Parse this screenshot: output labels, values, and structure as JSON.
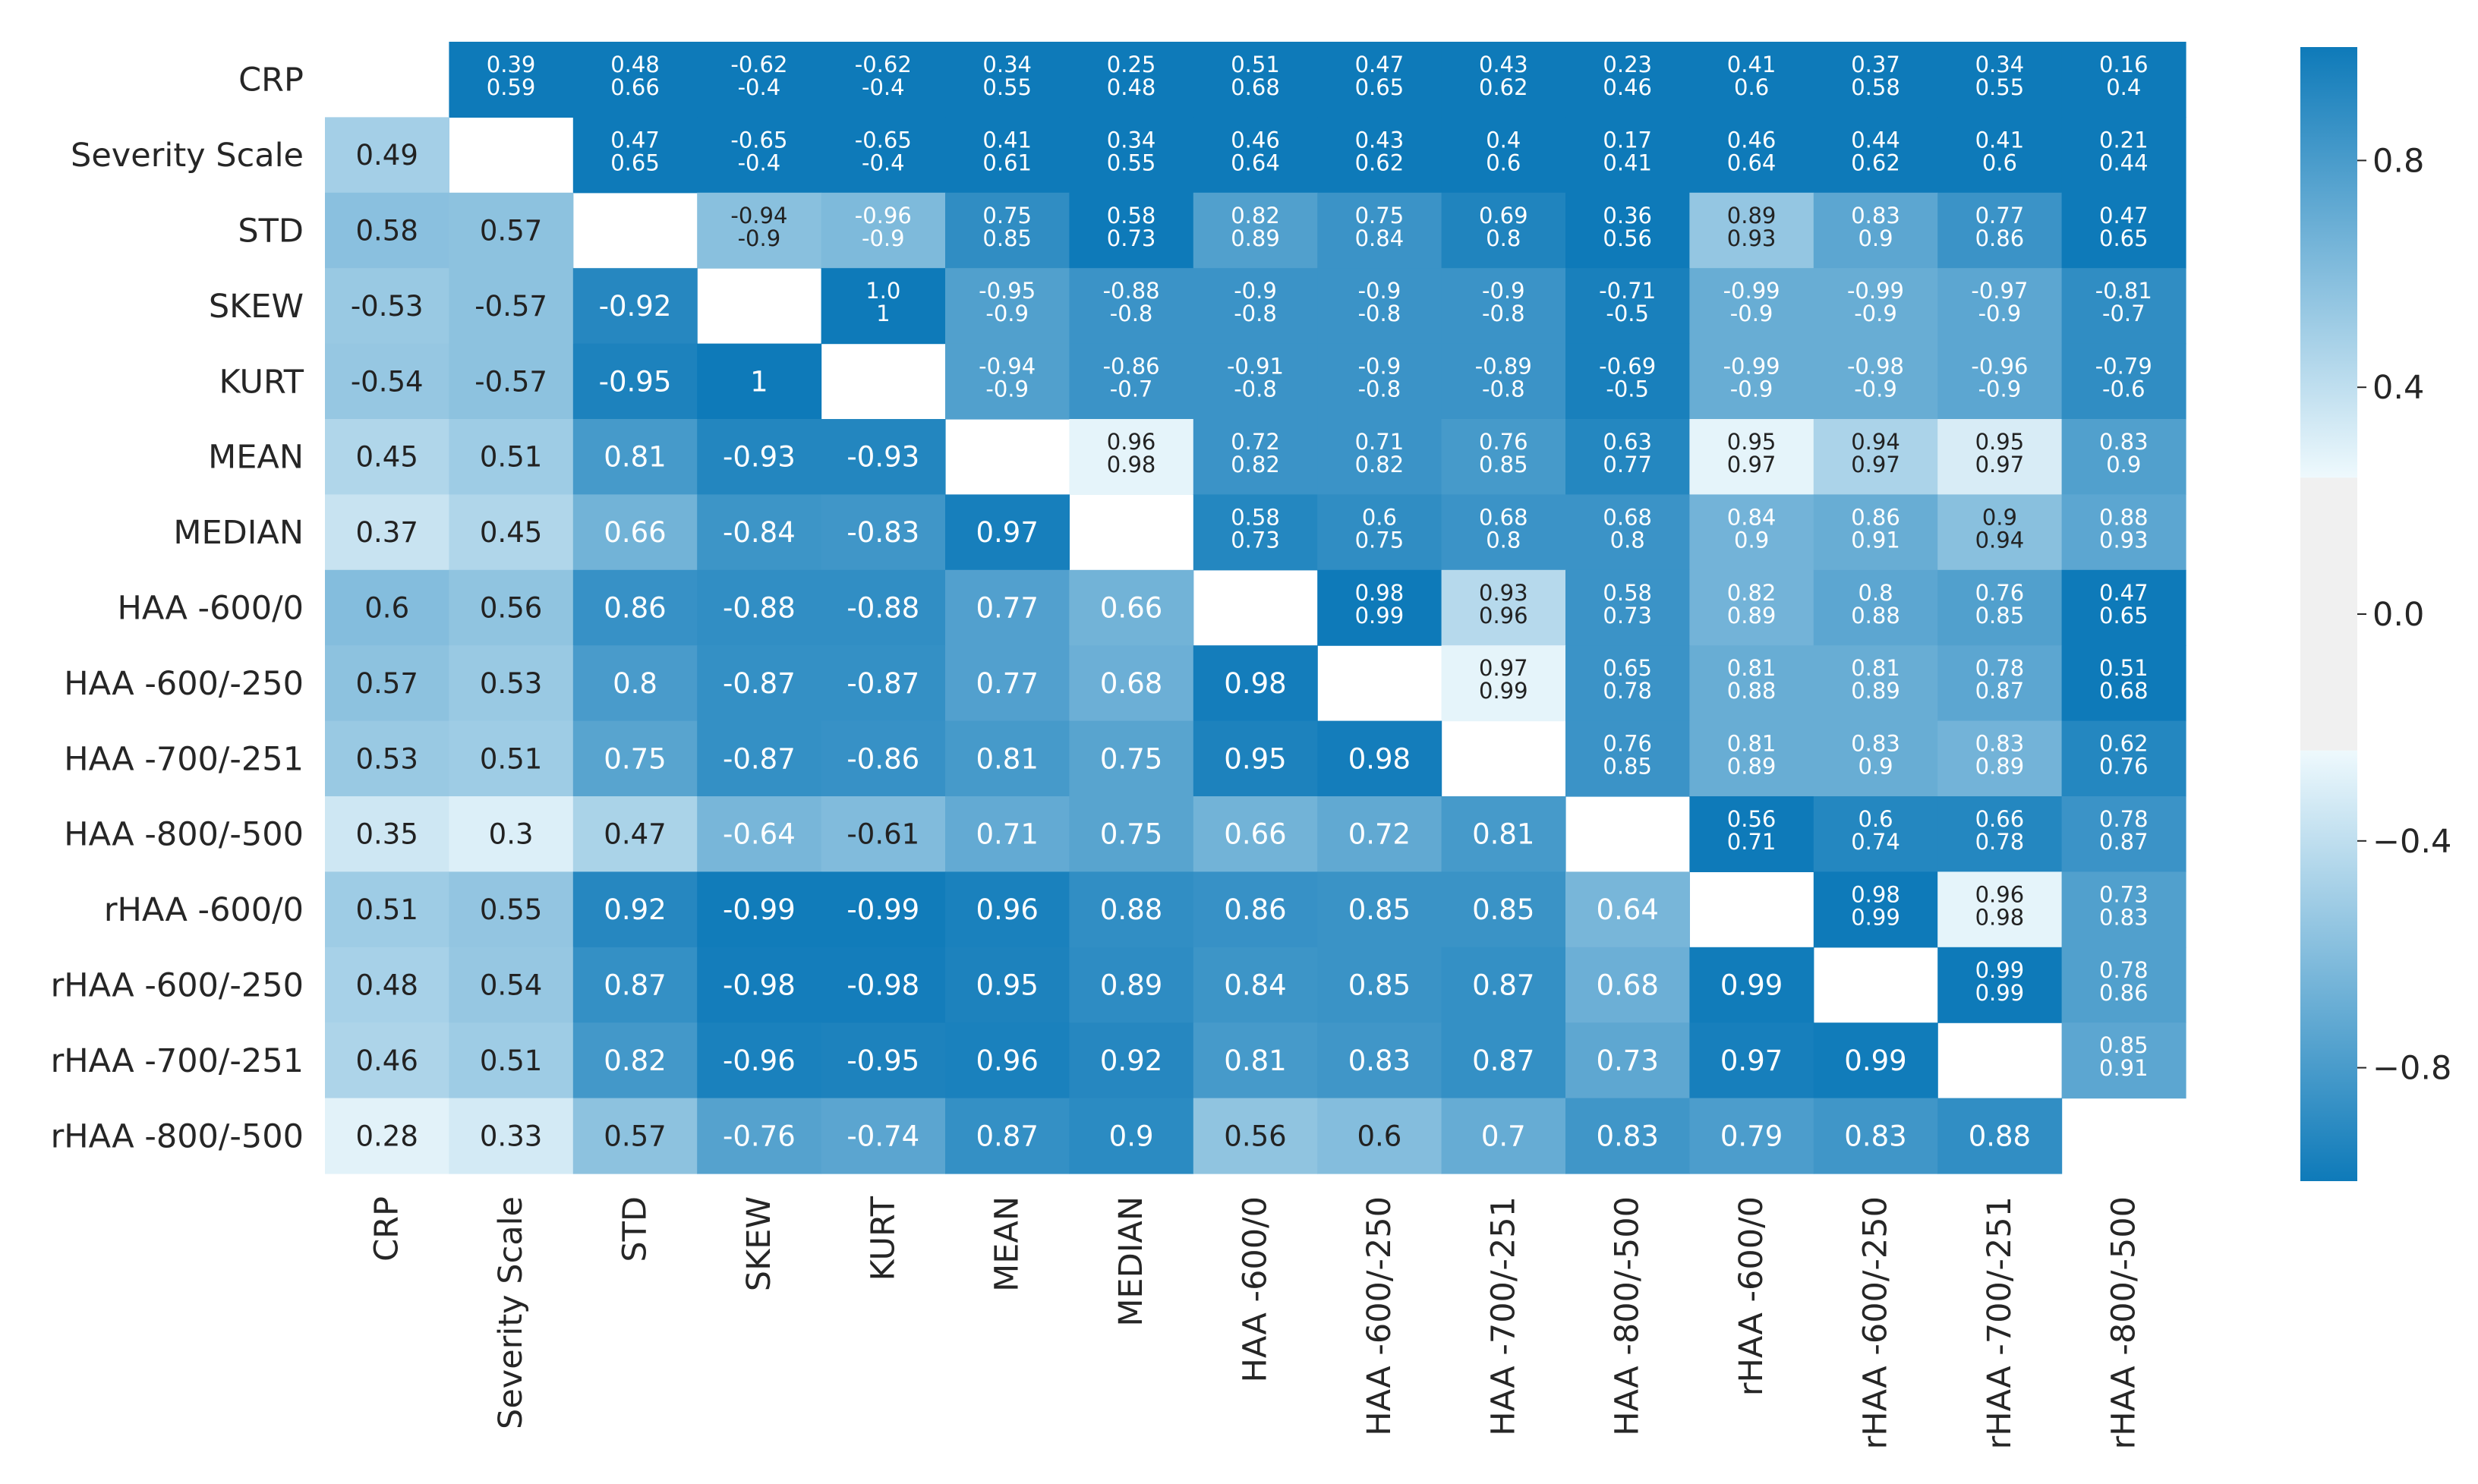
{
  "colors": {
    "dark": "#0e7ab9",
    "light": "#eef9fd",
    "center": "#f0f0f0",
    "text_dark": "#222222",
    "text_light": "#ffffff"
  },
  "chart_data": {
    "type": "heatmap",
    "title": "",
    "labels": [
      "CRP",
      "Severity Scale",
      "STD",
      "SKEW",
      "KURT",
      "MEAN",
      "MEDIAN",
      "HAA -600/0",
      "HAA -600/-250",
      "HAA -700/-251",
      "HAA -800/-500",
      "rHAA -600/0",
      "rHAA -600/-250",
      "rHAA -700/-251",
      "rHAA -800/-500"
    ],
    "lower_triangle": [
      [],
      [
        "0.49"
      ],
      [
        "0.58",
        "0.57"
      ],
      [
        "-0.53",
        "-0.57",
        "-0.92"
      ],
      [
        "-0.54",
        "-0.57",
        "-0.95",
        "1"
      ],
      [
        "0.45",
        "0.51",
        "0.81",
        "-0.93",
        "-0.93"
      ],
      [
        "0.37",
        "0.45",
        "0.66",
        "-0.84",
        "-0.83",
        "0.97"
      ],
      [
        "0.6",
        "0.56",
        "0.86",
        "-0.88",
        "-0.88",
        "0.77",
        "0.66"
      ],
      [
        "0.57",
        "0.53",
        "0.8",
        "-0.87",
        "-0.87",
        "0.77",
        "0.68",
        "0.98"
      ],
      [
        "0.53",
        "0.51",
        "0.75",
        "-0.87",
        "-0.86",
        "0.81",
        "0.75",
        "0.95",
        "0.98"
      ],
      [
        "0.35",
        "0.3",
        "0.47",
        "-0.64",
        "-0.61",
        "0.71",
        "0.75",
        "0.66",
        "0.72",
        "0.81"
      ],
      [
        "0.51",
        "0.55",
        "0.92",
        "-0.99",
        "-0.99",
        "0.96",
        "0.88",
        "0.86",
        "0.85",
        "0.85",
        "0.64"
      ],
      [
        "0.48",
        "0.54",
        "0.87",
        "-0.98",
        "-0.98",
        "0.95",
        "0.89",
        "0.84",
        "0.85",
        "0.87",
        "0.68",
        "0.99"
      ],
      [
        "0.46",
        "0.51",
        "0.82",
        "-0.96",
        "-0.95",
        "0.96",
        "0.92",
        "0.81",
        "0.83",
        "0.87",
        "0.73",
        "0.97",
        "0.99"
      ],
      [
        "0.28",
        "0.33",
        "0.57",
        "-0.76",
        "-0.74",
        "0.87",
        "0.9",
        "0.56",
        "0.6",
        "0.7",
        "0.83",
        "0.79",
        "0.83",
        "0.88"
      ]
    ],
    "upper_triangle": [
      [
        null,
        [
          "0.39",
          "0.59"
        ],
        [
          "0.48",
          "0.66"
        ],
        [
          "-0.62",
          "-0.4"
        ],
        [
          "-0.62",
          "-0.4"
        ],
        [
          "0.34",
          "0.55"
        ],
        [
          "0.25",
          "0.48"
        ],
        [
          "0.51",
          "0.68"
        ],
        [
          "0.47",
          "0.65"
        ],
        [
          "0.43",
          "0.62"
        ],
        [
          "0.23",
          "0.46"
        ],
        [
          "0.41",
          "0.6"
        ],
        [
          "0.37",
          "0.58"
        ],
        [
          "0.34",
          "0.55"
        ],
        [
          "0.16",
          "0.4"
        ]
      ],
      [
        null,
        null,
        [
          "0.47",
          "0.65"
        ],
        [
          "-0.65",
          "-0.4"
        ],
        [
          "-0.65",
          "-0.4"
        ],
        [
          "0.41",
          "0.61"
        ],
        [
          "0.34",
          "0.55"
        ],
        [
          "0.46",
          "0.64"
        ],
        [
          "0.43",
          "0.62"
        ],
        [
          "0.4",
          "0.6"
        ],
        [
          "0.17",
          "0.41"
        ],
        [
          "0.46",
          "0.64"
        ],
        [
          "0.44",
          "0.62"
        ],
        [
          "0.41",
          "0.6"
        ],
        [
          "0.21",
          "0.44"
        ]
      ],
      [
        null,
        null,
        null,
        [
          "-0.94",
          "-0.9"
        ],
        [
          "-0.96",
          "-0.9"
        ],
        [
          "0.75",
          "0.85"
        ],
        [
          "0.58",
          "0.73"
        ],
        [
          "0.82",
          "0.89"
        ],
        [
          "0.75",
          "0.84"
        ],
        [
          "0.69",
          "0.8"
        ],
        [
          "0.36",
          "0.56"
        ],
        [
          "0.89",
          "0.93"
        ],
        [
          "0.83",
          "0.9"
        ],
        [
          "0.77",
          "0.86"
        ],
        [
          "0.47",
          "0.65"
        ]
      ],
      [
        null,
        null,
        null,
        null,
        [
          "1.0",
          "1"
        ],
        [
          "-0.95",
          "-0.9"
        ],
        [
          "-0.88",
          "-0.8"
        ],
        [
          "-0.9",
          "-0.8"
        ],
        [
          "-0.9",
          "-0.8"
        ],
        [
          "-0.9",
          "-0.8"
        ],
        [
          "-0.71",
          "-0.5"
        ],
        [
          "-0.99",
          "-0.9"
        ],
        [
          "-0.99",
          "-0.9"
        ],
        [
          "-0.97",
          "-0.9"
        ],
        [
          "-0.81",
          "-0.7"
        ]
      ],
      [
        null,
        null,
        null,
        null,
        null,
        [
          "-0.94",
          "-0.9"
        ],
        [
          "-0.86",
          "-0.7"
        ],
        [
          "-0.91",
          "-0.8"
        ],
        [
          "-0.9",
          "-0.8"
        ],
        [
          "-0.89",
          "-0.8"
        ],
        [
          "-0.69",
          "-0.5"
        ],
        [
          "-0.99",
          "-0.9"
        ],
        [
          "-0.98",
          "-0.9"
        ],
        [
          "-0.96",
          "-0.9"
        ],
        [
          "-0.79",
          "-0.6"
        ]
      ],
      [
        null,
        null,
        null,
        null,
        null,
        null,
        [
          "0.96",
          "0.98"
        ],
        [
          "0.72",
          "0.82"
        ],
        [
          "0.71",
          "0.82"
        ],
        [
          "0.76",
          "0.85"
        ],
        [
          "0.63",
          "0.77"
        ],
        [
          "0.95",
          "0.97"
        ],
        [
          "0.94",
          "0.97"
        ],
        [
          "0.95",
          "0.97"
        ],
        [
          "0.83",
          "0.9"
        ]
      ],
      [
        null,
        null,
        null,
        null,
        null,
        null,
        null,
        [
          "0.58",
          "0.73"
        ],
        [
          "0.6",
          "0.75"
        ],
        [
          "0.68",
          "0.8"
        ],
        [
          "0.68",
          "0.8"
        ],
        [
          "0.84",
          "0.9"
        ],
        [
          "0.86",
          "0.91"
        ],
        [
          "0.9",
          "0.94"
        ],
        [
          "0.88",
          "0.93"
        ]
      ],
      [
        null,
        null,
        null,
        null,
        null,
        null,
        null,
        null,
        [
          "0.98",
          "0.99"
        ],
        [
          "0.93",
          "0.96"
        ],
        [
          "0.58",
          "0.73"
        ],
        [
          "0.82",
          "0.89"
        ],
        [
          "0.8",
          "0.88"
        ],
        [
          "0.76",
          "0.85"
        ],
        [
          "0.47",
          "0.65"
        ]
      ],
      [
        null,
        null,
        null,
        null,
        null,
        null,
        null,
        null,
        null,
        [
          "0.97",
          "0.99"
        ],
        [
          "0.65",
          "0.78"
        ],
        [
          "0.81",
          "0.88"
        ],
        [
          "0.81",
          "0.89"
        ],
        [
          "0.78",
          "0.87"
        ],
        [
          "0.51",
          "0.68"
        ]
      ],
      [
        null,
        null,
        null,
        null,
        null,
        null,
        null,
        null,
        null,
        null,
        [
          "0.76",
          "0.85"
        ],
        [
          "0.81",
          "0.89"
        ],
        [
          "0.83",
          "0.9"
        ],
        [
          "0.83",
          "0.89"
        ],
        [
          "0.62",
          "0.76"
        ]
      ],
      [
        null,
        null,
        null,
        null,
        null,
        null,
        null,
        null,
        null,
        null,
        null,
        [
          "0.56",
          "0.71"
        ],
        [
          "0.6",
          "0.74"
        ],
        [
          "0.66",
          "0.78"
        ],
        [
          "0.78",
          "0.87"
        ]
      ],
      [
        null,
        null,
        null,
        null,
        null,
        null,
        null,
        null,
        null,
        null,
        null,
        null,
        [
          "0.98",
          "0.99"
        ],
        [
          "0.96",
          "0.98"
        ],
        [
          "0.73",
          "0.83"
        ]
      ],
      [
        null,
        null,
        null,
        null,
        null,
        null,
        null,
        null,
        null,
        null,
        null,
        null,
        null,
        [
          "0.99",
          "0.99"
        ],
        [
          "0.78",
          "0.86"
        ]
      ],
      [
        null,
        null,
        null,
        null,
        null,
        null,
        null,
        null,
        null,
        null,
        null,
        null,
        null,
        null,
        [
          "0.85",
          "0.91"
        ]
      ],
      []
    ],
    "upper_cell_shades": [
      [
        null,
        0.0,
        0.0,
        0.0,
        0.0,
        0.0,
        0.0,
        0.0,
        0.0,
        0.0,
        0.0,
        0.0,
        0.0,
        0.0,
        0.0
      ],
      [
        null,
        null,
        0.0,
        0.0,
        0.0,
        0.0,
        0.0,
        0.0,
        0.0,
        0.0,
        0.0,
        0.0,
        0.0,
        0.0,
        0.0
      ],
      [
        null,
        null,
        null,
        0.55,
        0.5,
        0.15,
        0.0,
        0.3,
        0.2,
        0.08,
        0.0,
        0.6,
        0.35,
        0.2,
        0.0
      ],
      [
        null,
        null,
        null,
        null,
        0.0,
        0.3,
        0.2,
        0.2,
        0.2,
        0.2,
        0.05,
        0.4,
        0.4,
        0.35,
        0.15
      ],
      [
        null,
        null,
        null,
        null,
        null,
        0.3,
        0.2,
        0.2,
        0.2,
        0.2,
        0.05,
        0.4,
        0.4,
        0.35,
        0.15
      ],
      [
        null,
        null,
        null,
        null,
        null,
        null,
        0.96,
        0.2,
        0.2,
        0.25,
        0.1,
        0.96,
        0.7,
        0.9,
        0.3
      ],
      [
        null,
        null,
        null,
        null,
        null,
        null,
        null,
        0.1,
        0.15,
        0.2,
        0.2,
        0.45,
        0.4,
        0.55,
        0.35
      ],
      [
        null,
        null,
        null,
        null,
        null,
        null,
        null,
        null,
        0.0,
        0.75,
        0.2,
        0.45,
        0.35,
        0.3,
        0.0
      ],
      [
        null,
        null,
        null,
        null,
        null,
        null,
        null,
        null,
        null,
        0.96,
        0.2,
        0.4,
        0.4,
        0.35,
        0.0
      ],
      [
        null,
        null,
        null,
        null,
        null,
        null,
        null,
        null,
        null,
        null,
        0.2,
        0.4,
        0.4,
        0.45,
        0.1
      ],
      [
        null,
        null,
        null,
        null,
        null,
        null,
        null,
        null,
        null,
        null,
        null,
        0.0,
        0.1,
        0.1,
        0.2
      ],
      [
        null,
        null,
        null,
        null,
        null,
        null,
        null,
        null,
        null,
        null,
        null,
        null,
        0.0,
        0.96,
        0.3
      ],
      [
        null,
        null,
        null,
        null,
        null,
        null,
        null,
        null,
        null,
        null,
        null,
        null,
        null,
        0.0,
        0.3
      ],
      [
        null,
        null,
        null,
        null,
        null,
        null,
        null,
        null,
        null,
        null,
        null,
        null,
        null,
        null,
        0.35
      ],
      [
        null,
        null,
        null,
        null,
        null,
        null,
        null,
        null,
        null,
        null,
        null,
        null,
        null,
        null,
        null
      ]
    ],
    "colorbar": {
      "range": [
        -1.0,
        1.0
      ],
      "ticks": [
        0.8,
        0.4,
        0.0,
        -0.4,
        -0.8
      ],
      "tick_labels": [
        "0.8",
        "0.4",
        "0.0",
        "−0.4",
        "−0.8"
      ],
      "neutral_band": [
        -0.24,
        0.24
      ]
    }
  }
}
